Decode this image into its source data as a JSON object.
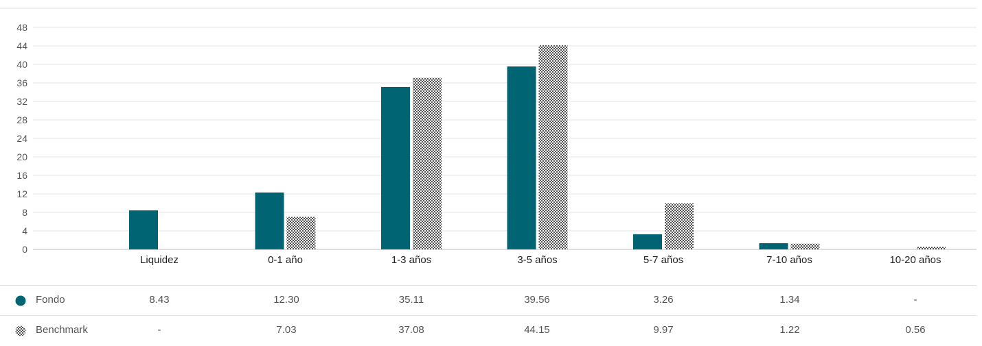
{
  "chart_data": {
    "type": "bar",
    "categories": [
      "Liquidez",
      "0-1 año",
      "1-3 años",
      "3-5 años",
      "5-7 años",
      "7-10 años",
      "10-20 años"
    ],
    "series": [
      {
        "name": "Fondo",
        "values": [
          8.43,
          12.3,
          35.11,
          39.56,
          3.26,
          1.34,
          null
        ],
        "color": "#006472",
        "pattern": "solid"
      },
      {
        "name": "Benchmark",
        "values": [
          null,
          7.03,
          37.08,
          44.15,
          9.97,
          1.22,
          0.56
        ],
        "color": "#555555",
        "pattern": "checker-hatch"
      }
    ],
    "yticks": [
      "0",
      "4",
      "8",
      "12",
      "16",
      "20",
      "24",
      "28",
      "32",
      "36",
      "40",
      "44",
      "48"
    ],
    "ylim": [
      0,
      48
    ],
    "grid": true,
    "legend": "table-below"
  },
  "table": {
    "rows": [
      {
        "label": "Fondo",
        "cells": [
          "8.43",
          "12.30",
          "35.11",
          "39.56",
          "3.26",
          "1.34",
          "-"
        ]
      },
      {
        "label": "Benchmark",
        "cells": [
          "-",
          "7.03",
          "37.08",
          "44.15",
          "9.97",
          "1.22",
          "0.56"
        ]
      }
    ]
  }
}
